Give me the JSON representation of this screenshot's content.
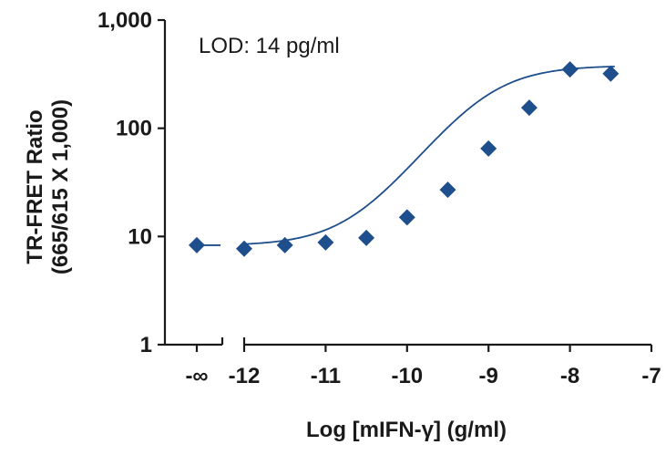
{
  "chart_data": {
    "type": "scatter",
    "title": "",
    "xlabel": "Log [mIFN-γ] (g/ml)",
    "ylabel_line1": "TR-FRET Ratio",
    "ylabel_line2": "(665/615 X 1,000)",
    "annotation": "LOD: 14 pg/ml",
    "yscale": "log",
    "ylim": [
      1,
      1000
    ],
    "xlim": [
      -12.3,
      -7
    ],
    "grid": false,
    "legend": "none",
    "y_tick_labels": [
      "1",
      "10",
      "100",
      "1,000"
    ],
    "y_tick_values": [
      1,
      10,
      100,
      1000
    ],
    "x_tick_labels": [
      "-∞",
      "-12",
      "-11",
      "-10",
      "-9",
      "-8",
      "-7"
    ],
    "x_tick_values": [
      null,
      -12,
      -11,
      -10,
      -9,
      -8,
      -7
    ],
    "zero_point": {
      "x_label": "-∞",
      "y": 8.3
    },
    "series": [
      {
        "x": [
          -12,
          -11.5,
          -11,
          -10.5,
          -10,
          -9.5,
          -9,
          -8.5,
          -8,
          -7.5
        ],
        "y": [
          7.7,
          8.3,
          8.8,
          9.7,
          15,
          27,
          65,
          155,
          350,
          320
        ]
      }
    ],
    "fit_curve": {
      "bottom": 8.2,
      "top": 380,
      "log_ec50": -9.05,
      "hill": 1.05
    },
    "colors": {
      "marker": "#1f4e8c",
      "curve": "#1f4e8c",
      "axis": "#1a1a1a",
      "text": "#1a1a1a"
    }
  }
}
